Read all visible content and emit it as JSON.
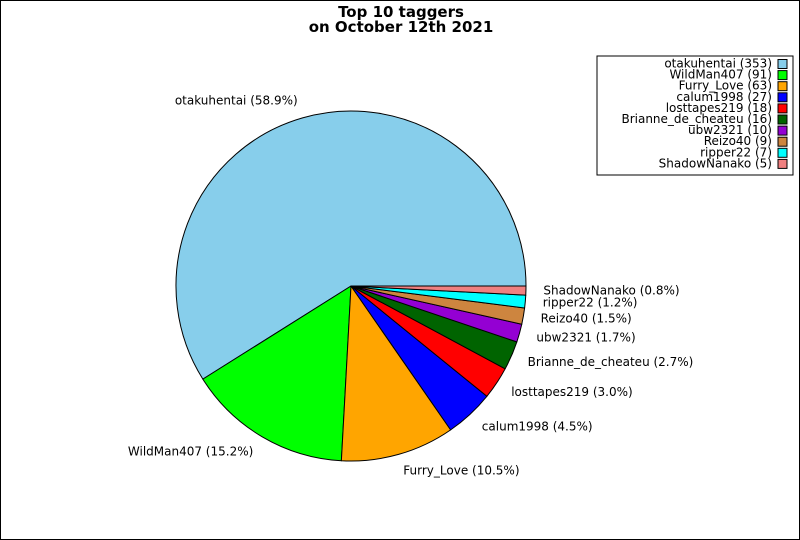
{
  "chart_data": {
    "type": "pie",
    "title_lines": [
      "Top 10 taggers",
      "on October 12th 2021"
    ],
    "slices": [
      {
        "name": "otakuhentai",
        "value": 353,
        "pct_label": "otakuhentai (58.9%)",
        "legend_label": "otakuhentai (353)",
        "color": "#87ceeb"
      },
      {
        "name": "WildMan407",
        "value": 91,
        "pct_label": "WildMan407 (15.2%)",
        "legend_label": "WildMan407 (91)",
        "color": "#00ff00"
      },
      {
        "name": "Furry_Love",
        "value": 63,
        "pct_label": "Furry_Love (10.5%)",
        "legend_label": "Furry_Love (63)",
        "color": "#ffa500"
      },
      {
        "name": "calum1998",
        "value": 27,
        "pct_label": "calum1998 (4.5%)",
        "legend_label": "calum1998 (27)",
        "color": "#0000ff"
      },
      {
        "name": "losttapes219",
        "value": 18,
        "pct_label": "losttapes219 (3.0%)",
        "legend_label": "losttapes219 (18)",
        "color": "#ff0000"
      },
      {
        "name": "Brianne_de_cheateu",
        "value": 16,
        "pct_label": "Brianne_de_cheateu (2.7%)",
        "legend_label": "Brianne_de_cheateu (16)",
        "color": "#006400"
      },
      {
        "name": "ubw2321",
        "value": 10,
        "pct_label": "ubw2321 (1.7%)",
        "legend_label": "ubw2321 (10)",
        "color": "#9400d3"
      },
      {
        "name": "Reizo40",
        "value": 9,
        "pct_label": "Reizo40 (1.5%)",
        "legend_label": "Reizo40 (9)",
        "color": "#cd853f"
      },
      {
        "name": "ripper22",
        "value": 7,
        "pct_label": "ripper22 (1.2%)",
        "legend_label": "ripper22 (7)",
        "color": "#00ffff"
      },
      {
        "name": "ShadowNanako",
        "value": 5,
        "pct_label": "ShadowNanako (0.8%)",
        "legend_label": "ShadowNanako (5)",
        "color": "#f08080"
      }
    ],
    "legend_position": "top-right"
  }
}
